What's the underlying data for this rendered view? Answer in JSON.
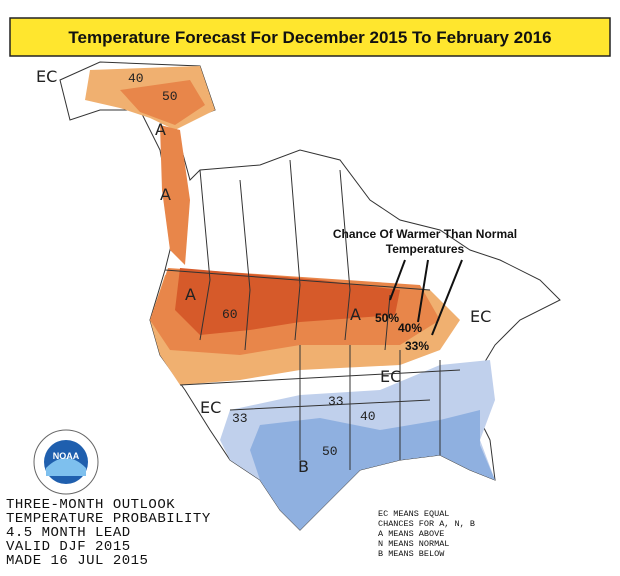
{
  "header": {
    "title": "Temperature Forecast For December 2015 To February 2016"
  },
  "annotation": {
    "lines": [
      "Chance Of Warmer Than Normal",
      "Temperatures"
    ]
  },
  "map_labels": [
    "EC",
    "40",
    "50",
    "A",
    "A",
    "A",
    "60",
    "A",
    "50%",
    "40%",
    "33%",
    "EC",
    "EC",
    "EC",
    "33",
    "33",
    "40",
    "50",
    "B"
  ],
  "logo": {
    "text": "NOAA"
  },
  "info_lines": [
    "THREE-MONTH OUTLOOK",
    "TEMPERATURE PROBABILITY",
    "4.5 MONTH LEAD",
    "VALID DJF 2015",
    "MADE 16 JUL 2015"
  ],
  "legend_lines": [
    "EC MEANS EQUAL",
    "CHANCES FOR A, N, B",
    "A MEANS ABOVE",
    "N MEANS NORMAL",
    "B MEANS BELOW"
  ]
}
